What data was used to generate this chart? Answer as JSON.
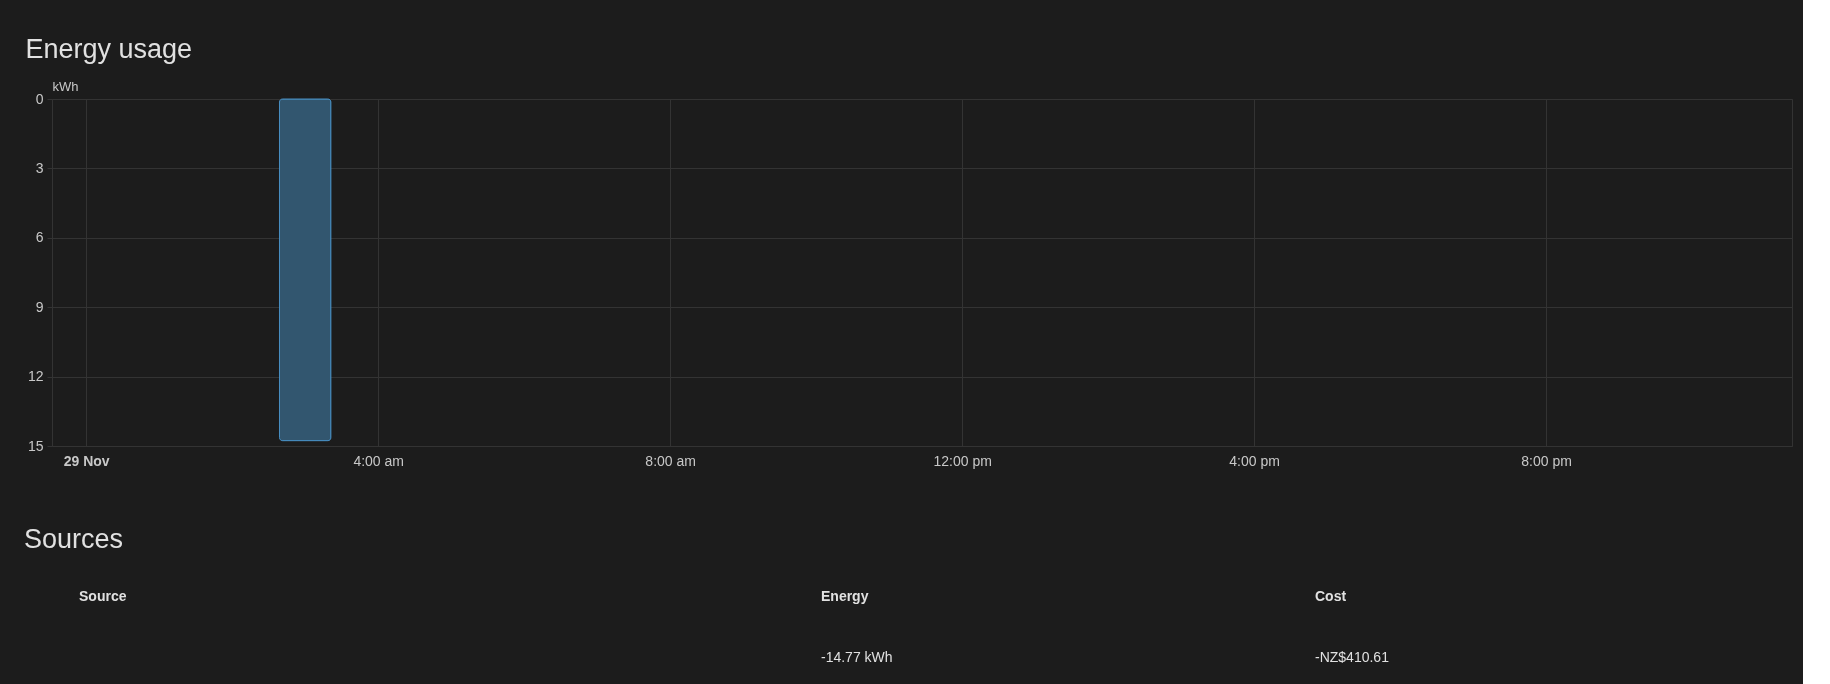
{
  "chart_data": [
    {
      "type": "bar",
      "title": "Energy usage",
      "ylabel": "kWh",
      "x": [
        3
      ],
      "values": [
        14.77
      ],
      "color": "#32566f",
      "xlim": [
        -0.4,
        23.3
      ],
      "xticks": [
        {
          "value": 0,
          "label": "29 Nov"
        },
        {
          "value": 4,
          "label": "4:00 am"
        },
        {
          "value": 8,
          "label": "8:00 am"
        },
        {
          "value": 12,
          "label": "12:00 pm"
        },
        {
          "value": 16,
          "label": "4:00 pm"
        },
        {
          "value": 20,
          "label": "8:00 pm"
        }
      ],
      "ylim": [
        15,
        0
      ],
      "yticks": [
        0,
        3,
        6,
        9,
        12,
        15
      ],
      "grid": true
    },
    {
      "type": "other",
      "title": "Sources",
      "categories": [
        "Source",
        "Energy",
        "Cost"
      ],
      "annotations": [
        "-14.77 kWh",
        "-NZ$410.61"
      ]
    }
  ]
}
